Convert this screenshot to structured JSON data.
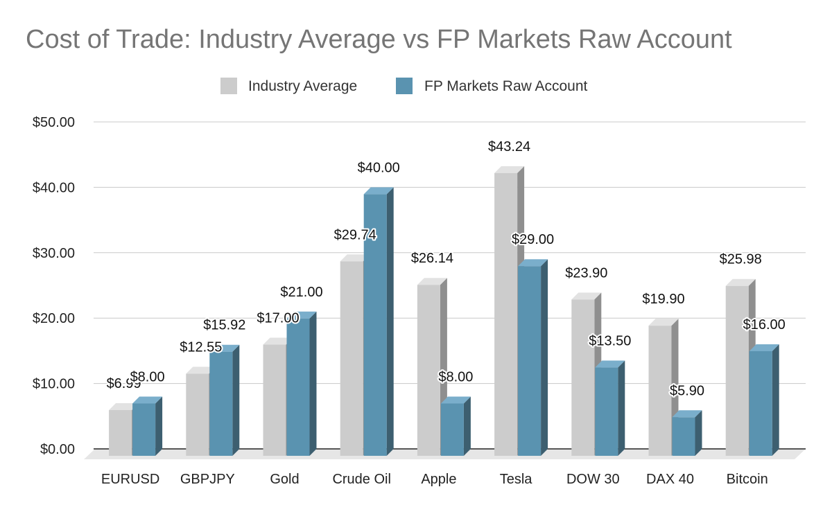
{
  "colors": {
    "industry_front": "#cccccc",
    "industry_side": "#8f8f8f",
    "industry_top": "#e2e2e2",
    "fp_front": "#5a93b0",
    "fp_side": "#3d5f70",
    "fp_top": "#7aaecb",
    "floor": "#e6e6e6",
    "grid": "#c8c8c8",
    "baseline": "#222222",
    "title": "#757575"
  },
  "chart_data": {
    "type": "bar",
    "style": "3d-clustered-column",
    "title": "Cost of Trade: Industry Average vs FP Markets Raw Account",
    "xlabel": "",
    "ylabel": "",
    "ylim": [
      0,
      50
    ],
    "y_ticks": [
      "$0.00",
      "$10.00",
      "$20.00",
      "$30.00",
      "$40.00",
      "$50.00"
    ],
    "grid": true,
    "legend_position": "top-center",
    "categories": [
      "EURUSD",
      "GBPJPY",
      "Gold",
      "Crude Oil",
      "Apple",
      "Tesla",
      "DOW 30",
      "DAX 40",
      "Bitcoin"
    ],
    "series": [
      {
        "name": "Industry Average",
        "values": [
          6.99,
          12.55,
          17.0,
          29.74,
          26.14,
          43.24,
          23.9,
          19.9,
          25.98
        ],
        "labels": [
          "$6.99",
          "$12.55",
          "$17.00",
          "$29.74",
          "$26.14",
          "$43.24",
          "$23.90",
          "$19.90",
          "$25.98"
        ]
      },
      {
        "name": "FP Markets Raw Account",
        "values": [
          8.0,
          15.92,
          21.0,
          40.0,
          8.0,
          29.0,
          13.5,
          5.9,
          16.0
        ],
        "labels": [
          "$8.00",
          "$15.92",
          "$21.00",
          "$40.00",
          "$8.00",
          "$29.00",
          "$13.50",
          "$5.90",
          "$16.00"
        ]
      }
    ]
  }
}
